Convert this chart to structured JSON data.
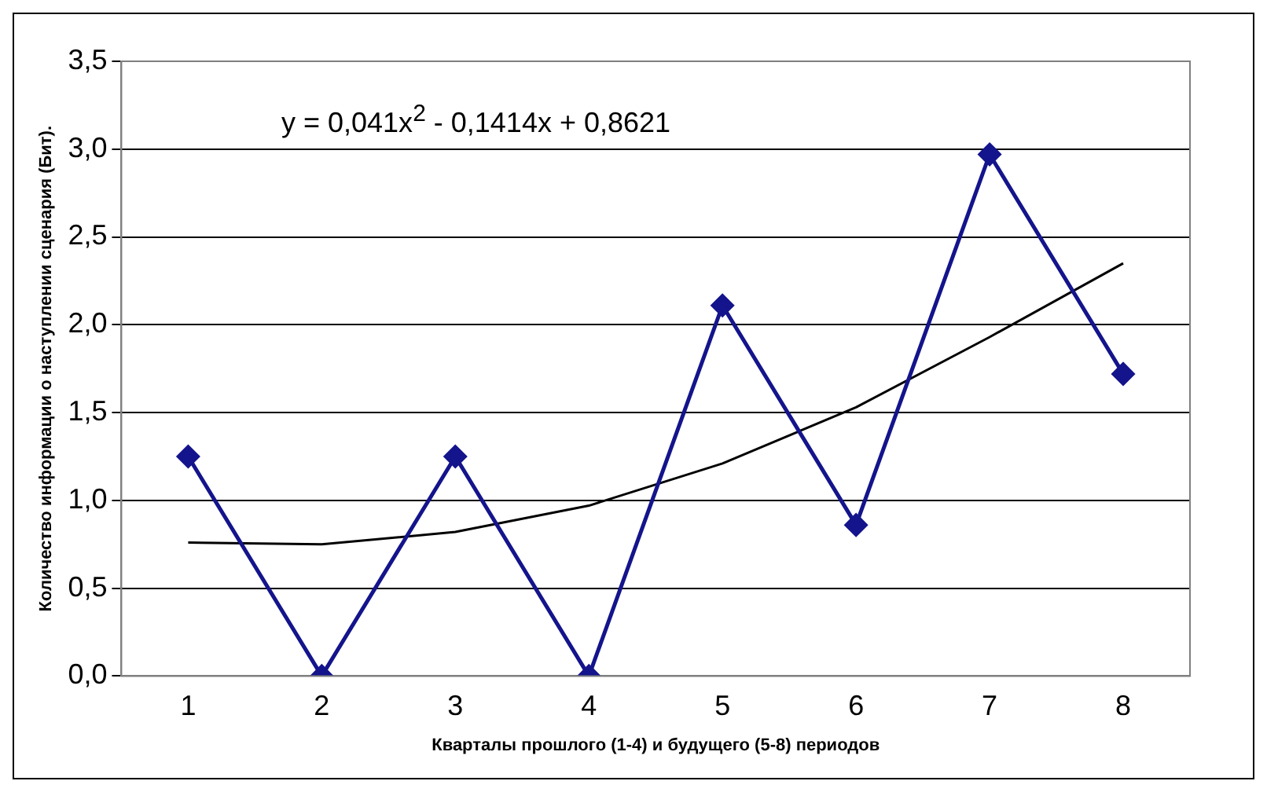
{
  "chart_data": {
    "type": "line",
    "xlabel": "Кварталы прошлого (1-4) и будущего (5-8) периодов",
    "ylabel": "Количество информации о наступлении сценария (Бит).",
    "annotations": [
      "y = 0,041x$^{2}$ - 0,1414x + 0,8621"
    ],
    "categories": [
      "1",
      "2",
      "3",
      "4",
      "5",
      "6",
      "7",
      "8"
    ],
    "series": [
      {
        "color": "#14148c",
        "marker": "diamond",
        "values": [
          1.25,
          0,
          1.25,
          0,
          2.11,
          0.86,
          2.97,
          1.72
        ]
      },
      {
        "type": "line",
        "color": "#000000",
        "marker": "none",
        "values": [
          0.76,
          0.75,
          0.82,
          0.97,
          1.21,
          1.53,
          1.93,
          2.35
        ]
      }
    ],
    "ylim": [
      0,
      3.5
    ],
    "yticks": [
      {
        "value": 0,
        "label": "0,0"
      },
      {
        "value": 0.5,
        "label": "0,5"
      },
      {
        "value": 1,
        "label": "1,0"
      },
      {
        "value": 1.5,
        "label": "1,5"
      },
      {
        "value": 2,
        "label": "2,0"
      },
      {
        "value": 2.5,
        "label": "2,5"
      },
      {
        "value": 3,
        "label": "3,0"
      },
      {
        "value": 3.5,
        "label": "3,5"
      }
    ],
    "grid": "y",
    "legend": false
  }
}
